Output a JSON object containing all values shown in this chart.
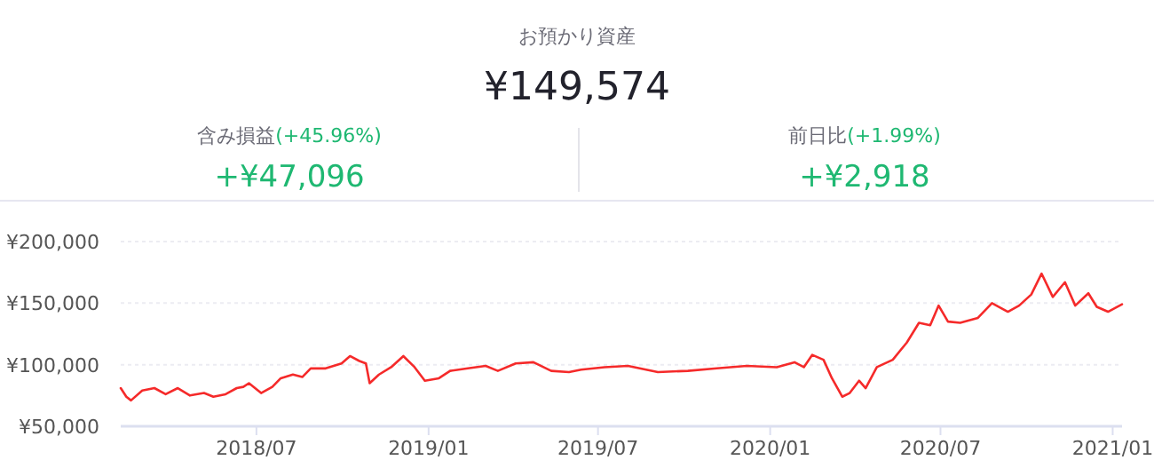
{
  "chart_data": {
    "type": "line",
    "title": "お預かり資産",
    "subtitle": "¥149,574",
    "annotations": [
      "含み損益",
      "(+45.96%)",
      "+¥47,096",
      "前日比",
      "(+1.99%)",
      "+¥2,918"
    ],
    "x": [
      "2018-02-06",
      "2018-02-12",
      "2018-02-17",
      "2018-03-01",
      "2018-03-14",
      "2018-03-26",
      "2018-04-08",
      "2018-04-21",
      "2018-05-06",
      "2018-05-16",
      "2018-05-29",
      "2018-06-10",
      "2018-06-17",
      "2018-06-23",
      "2018-07-06",
      "2018-07-18",
      "2018-07-27",
      "2018-08-09",
      "2018-08-19",
      "2018-08-28",
      "2018-09-13",
      "2018-09-30",
      "2018-10-09",
      "2018-10-19",
      "2018-10-26",
      "2018-10-30",
      "2018-11-09",
      "2018-11-22",
      "2018-12-05",
      "2018-12-17",
      "2018-12-28",
      "2019-01-12",
      "2019-01-24",
      "2019-02-12",
      "2019-03-03",
      "2019-03-16",
      "2019-04-04",
      "2019-04-23",
      "2019-05-12",
      "2019-05-31",
      "2019-06-13",
      "2019-07-08",
      "2019-08-02",
      "2019-09-03",
      "2019-10-05",
      "2019-11-05",
      "2019-12-07",
      "2020-01-08",
      "2020-01-27",
      "2020-02-06",
      "2020-02-15",
      "2020-02-27",
      "2020-03-07",
      "2020-03-18",
      "2020-03-26",
      "2020-04-05",
      "2020-04-12",
      "2020-04-24",
      "2020-05-11",
      "2020-05-26",
      "2020-06-08",
      "2020-06-20",
      "2020-06-29",
      "2020-07-09",
      "2020-07-22",
      "2020-08-10",
      "2020-08-25",
      "2020-09-11",
      "2020-09-23",
      "2020-10-06",
      "2020-10-17",
      "2020-10-29",
      "2020-11-11",
      "2020-11-22",
      "2020-12-06",
      "2020-12-15",
      "2020-12-27",
      "2021-01-11"
    ],
    "series": [
      {
        "color": "#f52a2a",
        "values": [
          81000,
          74000,
          71000,
          79000,
          81000,
          76000,
          81000,
          75000,
          77000,
          74000,
          76000,
          81000,
          82000,
          85000,
          77000,
          82000,
          89000,
          92000,
          90000,
          97000,
          97000,
          101000,
          107000,
          103000,
          101000,
          85000,
          92000,
          98000,
          107000,
          98000,
          87000,
          89000,
          95000,
          97000,
          99000,
          95000,
          101000,
          102000,
          95000,
          94000,
          96000,
          98000,
          99000,
          94000,
          95000,
          97000,
          99000,
          98000,
          102000,
          98000,
          108000,
          104000,
          89000,
          74000,
          77000,
          87000,
          81000,
          98000,
          104000,
          118000,
          134000,
          132000,
          148000,
          135000,
          134000,
          138000,
          150000,
          143000,
          148000,
          157000,
          174000,
          155000,
          167000,
          148000,
          158000,
          147000,
          143000,
          149000
        ]
      }
    ],
    "xlim": [
      "2018-02-06",
      "2021-01-11"
    ],
    "xticks": [
      {
        "value": "2018-07-01",
        "label": "2018/07"
      },
      {
        "value": "2019-01-01",
        "label": "2019/01"
      },
      {
        "value": "2019-07-01",
        "label": "2019/07"
      },
      {
        "value": "2020-01-01",
        "label": "2020/01"
      },
      {
        "value": "2020-07-01",
        "label": "2020/07"
      },
      {
        "value": "2021-01-01",
        "label": "2021/01"
      }
    ],
    "ylim": [
      50000,
      200000
    ],
    "yticks": [
      {
        "value": 50000,
        "label": "¥50,000"
      },
      {
        "value": 100000,
        "label": "¥100,000"
      },
      {
        "value": 150000,
        "label": "¥150,000"
      },
      {
        "value": 200000,
        "label": "¥200,000"
      }
    ],
    "grid": "y",
    "marker": "none",
    "line_style": "solid"
  }
}
